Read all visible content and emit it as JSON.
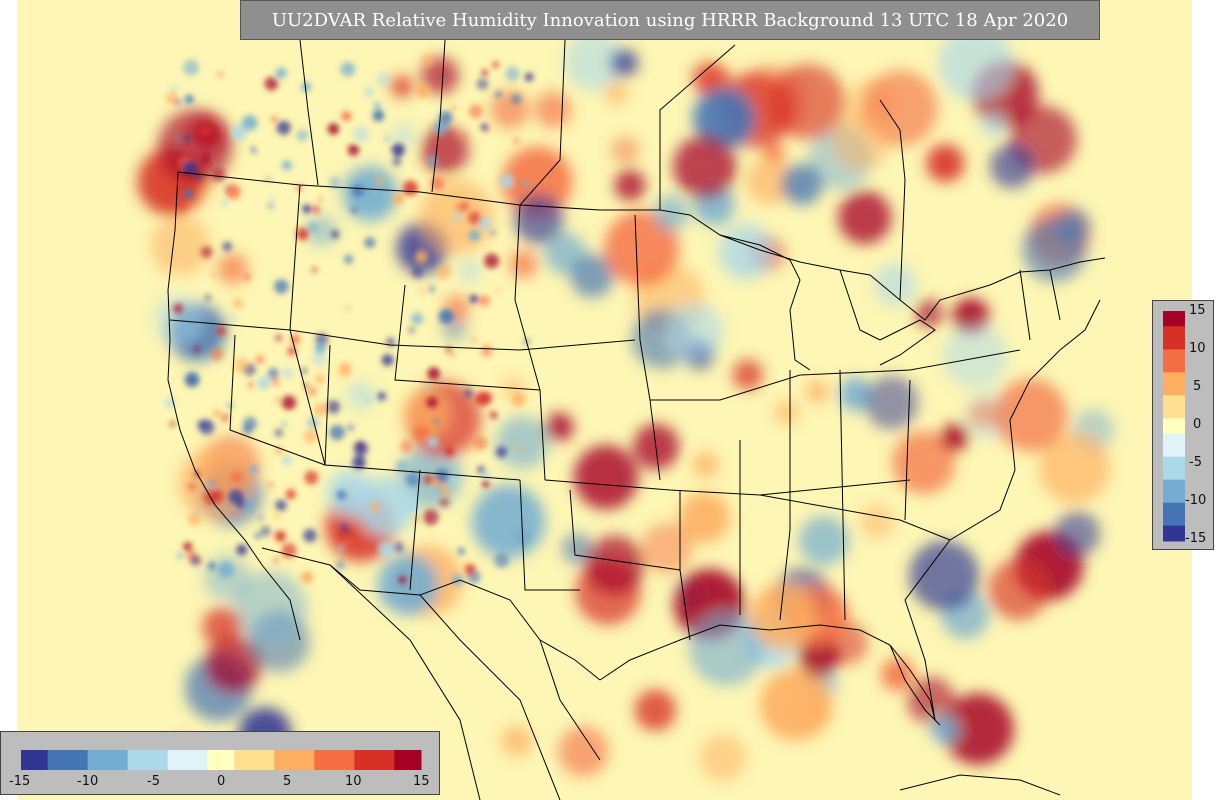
{
  "title": "UU2DVAR Relative Humidity Innovation using HRRR Background 13 UTC 18 Apr 2020",
  "colorbar": {
    "min": -15,
    "max": 15,
    "ticks": [
      "-15",
      "-10",
      "-5",
      "0",
      "5",
      "10",
      "15"
    ],
    "colors": [
      "#313695",
      "#4575b4",
      "#74add1",
      "#abd9e9",
      "#e0f3f8",
      "#ffffbf",
      "#fee090",
      "#fdae61",
      "#f46d43",
      "#d73027",
      "#a50026"
    ]
  },
  "map": {
    "region": "CONUS",
    "background_color": "#fdf6b4",
    "boundary_color": "#000000"
  }
}
